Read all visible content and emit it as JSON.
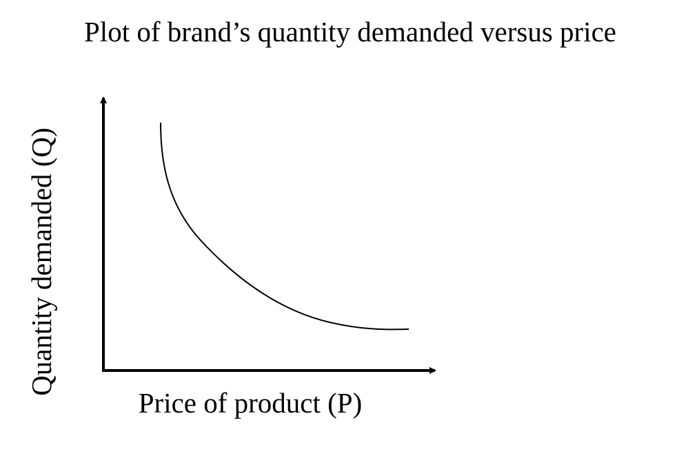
{
  "chart_data": {
    "type": "line",
    "title": "Plot of brand’s quantity demanded versus price",
    "xlabel": "Price of product (P)",
    "ylabel": "Quantity demanded (Q)",
    "series": [
      {
        "values": []
      }
    ],
    "tick_labels": false,
    "grid": false,
    "legend": "none",
    "line_color": "#000000",
    "curve_shape": "downward-sloping convex demand curve"
  }
}
